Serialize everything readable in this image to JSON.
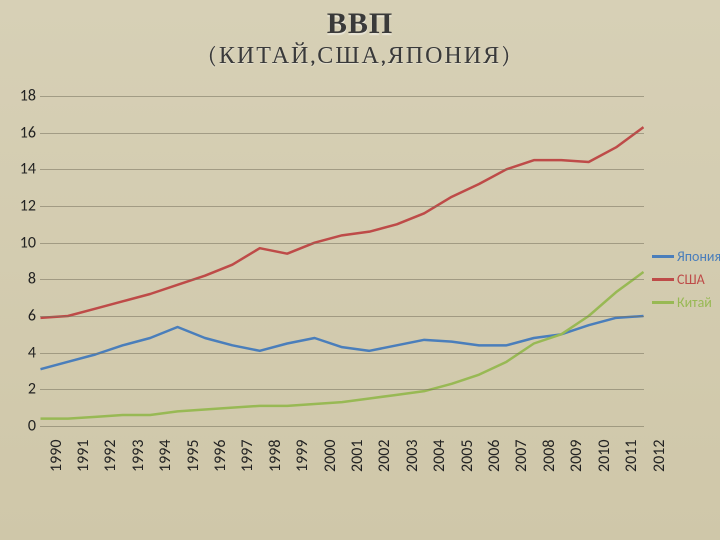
{
  "title": "ВВП",
  "subtitle": "(КИТАЙ,США,ЯПОНИЯ)",
  "title_fontsize": 30,
  "subtitle_fontsize": 24,
  "chart": {
    "type": "line",
    "categories": [
      "1990",
      "1991",
      "1992",
      "1993",
      "1994",
      "1995",
      "1996",
      "1997",
      "1998",
      "1999",
      "2000",
      "2001",
      "2002",
      "2003",
      "2004",
      "2005",
      "2006",
      "2007",
      "2008",
      "2009",
      "2010",
      "2011",
      "2012"
    ],
    "series": [
      {
        "name": "Япония",
        "color": "#4a7ebb",
        "values": [
          3.1,
          3.5,
          3.9,
          4.4,
          4.8,
          5.4,
          4.8,
          4.4,
          4.1,
          4.5,
          4.8,
          4.3,
          4.1,
          4.4,
          4.7,
          4.6,
          4.4,
          4.4,
          4.8,
          5.0,
          5.5,
          5.9,
          6.0
        ]
      },
      {
        "name": "США",
        "color": "#be4b48",
        "values": [
          5.9,
          6.0,
          6.4,
          6.8,
          7.2,
          7.7,
          8.2,
          8.8,
          9.7,
          9.4,
          10.0,
          10.4,
          10.6,
          11.0,
          11.6,
          12.5,
          13.2,
          14.0,
          14.5,
          14.5,
          14.4,
          15.2,
          16.3
        ]
      },
      {
        "name": "Китай",
        "color": "#98b954",
        "values": [
          0.4,
          0.4,
          0.5,
          0.6,
          0.6,
          0.8,
          0.9,
          1.0,
          1.1,
          1.1,
          1.2,
          1.3,
          1.5,
          1.7,
          1.9,
          2.3,
          2.8,
          3.5,
          4.5,
          5.0,
          6.0,
          7.3,
          8.4
        ]
      }
    ],
    "ylim": [
      0,
      18
    ],
    "ytick_step": 2,
    "ylabel_fontsize": 16,
    "xlabel_fontsize": 16,
    "line_width": 2.5,
    "grid_color": "rgba(120,115,95,0.55)",
    "background_color": "#d5ceb1",
    "legend_fontsize": 14
  }
}
